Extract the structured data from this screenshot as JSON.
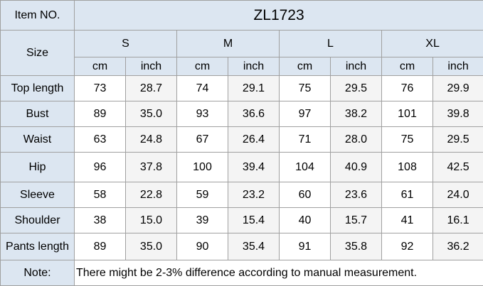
{
  "header": {
    "item_label": "Item NO.",
    "item_value": "ZL1723",
    "size_label": "Size",
    "sizes": [
      "S",
      "M",
      "L",
      "XL"
    ],
    "units": [
      "cm",
      "inch",
      "cm",
      "inch",
      "cm",
      "inch",
      "cm",
      "inch"
    ]
  },
  "table": {
    "rows": [
      {
        "label": "Top  length",
        "values": [
          "73",
          "28.7",
          "74",
          "29.1",
          "75",
          "29.5",
          "76",
          "29.9"
        ]
      },
      {
        "label": "Bust",
        "values": [
          "89",
          "35.0",
          "93",
          "36.6",
          "97",
          "38.2",
          "101",
          "39.8"
        ]
      },
      {
        "label": "Waist",
        "values": [
          "63",
          "24.8",
          "67",
          "26.4",
          "71",
          "28.0",
          "75",
          "29.5"
        ]
      },
      {
        "label": "Hip",
        "values": [
          "96",
          "37.8",
          "100",
          "39.4",
          "104",
          "40.9",
          "108",
          "42.5"
        ]
      },
      {
        "label": "Sleeve",
        "values": [
          "58",
          "22.8",
          "59",
          "23.2",
          "60",
          "23.6",
          "61",
          "24.0"
        ]
      },
      {
        "label": "Shoulder",
        "values": [
          "38",
          "15.0",
          "39",
          "15.4",
          "40",
          "15.7",
          "41",
          "16.1"
        ]
      },
      {
        "label": "Pants length",
        "values": [
          "89",
          "35.0",
          "90",
          "35.4",
          "91",
          "35.8",
          "92",
          "36.2"
        ]
      }
    ]
  },
  "note": {
    "label": "Note:",
    "text": "There might be 2-3% difference according to manual measurement."
  }
}
